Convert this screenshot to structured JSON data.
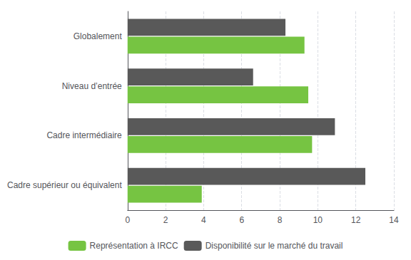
{
  "chart_data": {
    "type": "bar",
    "orientation": "horizontal",
    "categories": [
      "Cadre supérieur ou équivalent",
      "Cadre intermédiaire",
      "Niveau d’entrée",
      "Globalement"
    ],
    "series": [
      {
        "name": "Représentation à IRCC",
        "color": "#76c442",
        "values": [
          3.9,
          9.7,
          9.5,
          9.3
        ]
      },
      {
        "name": "Disponibilité sur le marché du travail",
        "color": "#595959",
        "values": [
          12.5,
          10.9,
          6.6,
          8.3
        ]
      }
    ],
    "xlim": [
      0,
      14
    ],
    "xticks": [
      0,
      2,
      4,
      6,
      8,
      10,
      12,
      14
    ],
    "grid": true,
    "legend": "bottom"
  }
}
